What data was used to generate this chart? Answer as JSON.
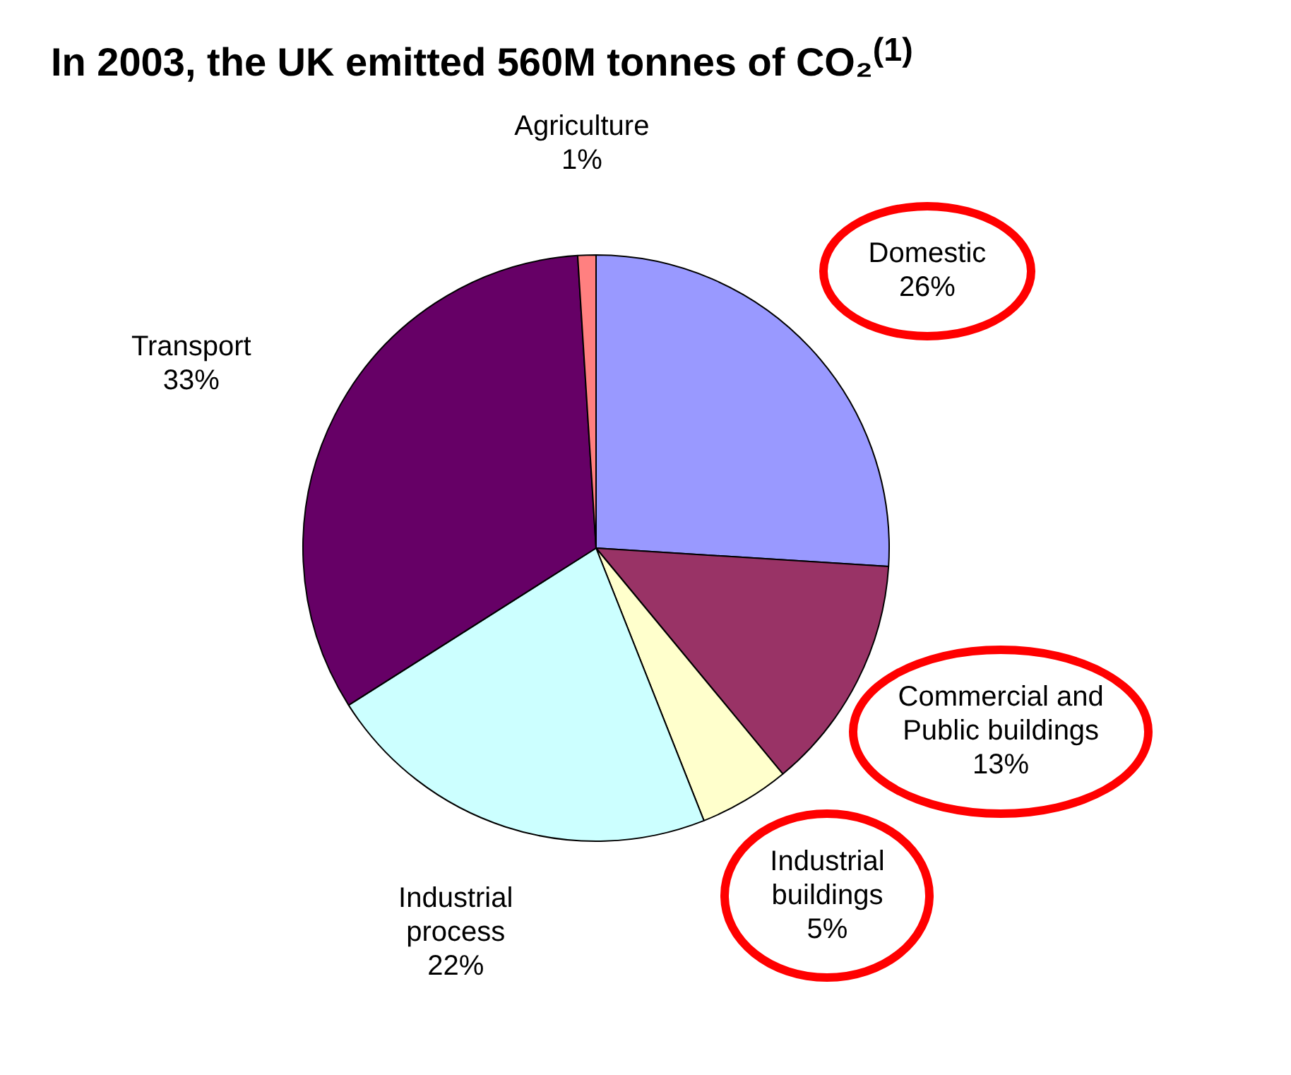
{
  "chart_data": {
    "type": "pie",
    "title": "In 2003, the UK emitted 560M tonnes of CO₂$^{(1)}$",
    "categories": [
      "Domestic",
      "Commercial and Public buildings",
      "Industrial buildings",
      "Industrial process",
      "Transport",
      "Agriculture"
    ],
    "values": [
      26,
      13,
      5,
      22,
      33,
      1
    ],
    "value_labels": [
      "26%",
      "13%",
      "5%",
      "22%",
      "33%",
      "1%"
    ],
    "colors": [
      "#9999ff",
      "#993366",
      "#ffffcc",
      "#ccffff",
      "#660066",
      "#ff8080"
    ],
    "legend": false
  }
}
